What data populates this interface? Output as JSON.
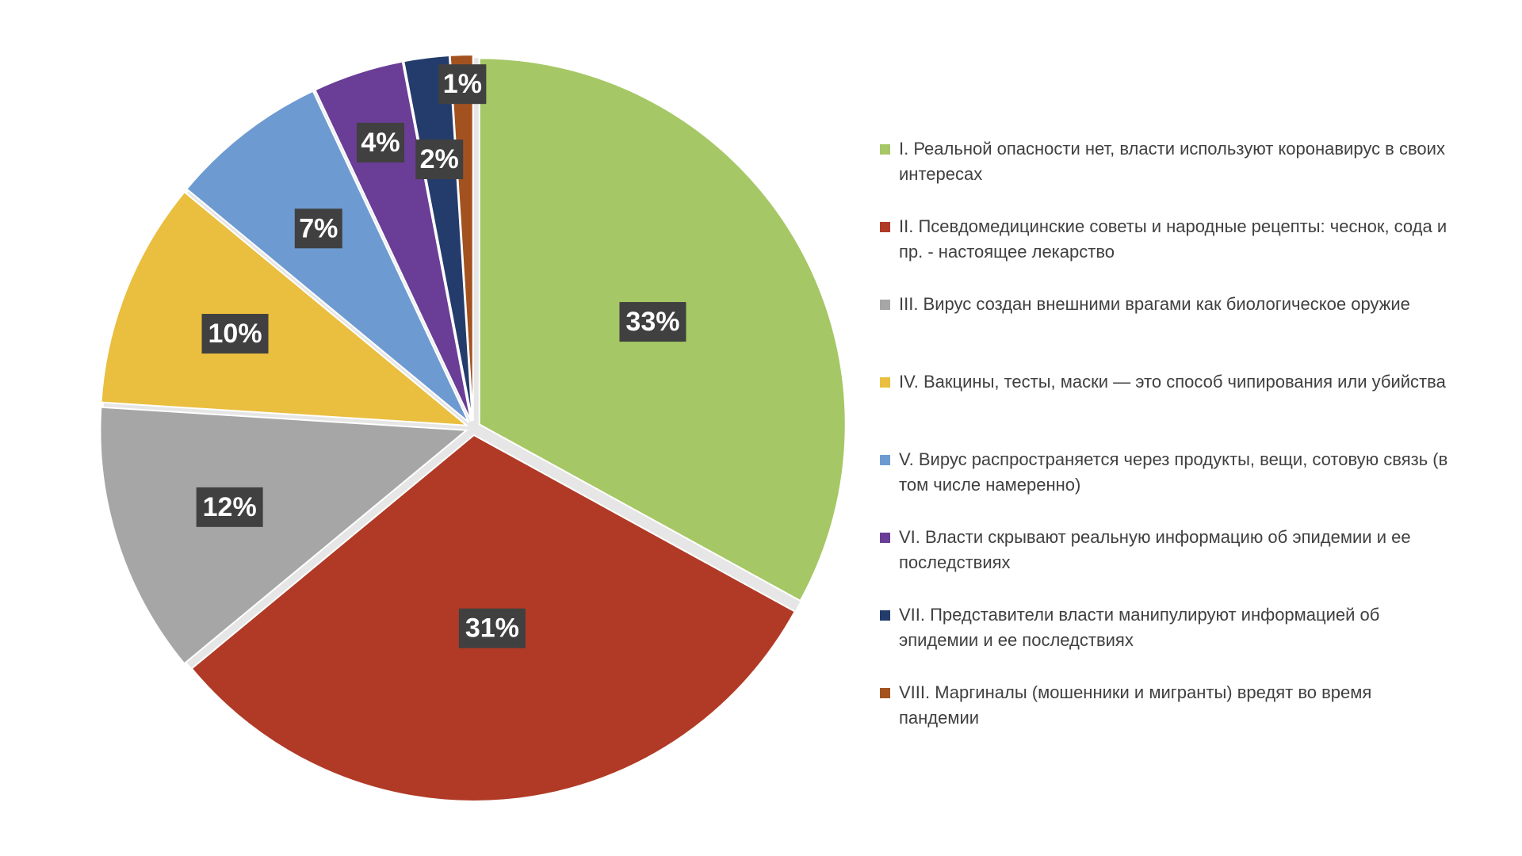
{
  "chart_data": {
    "type": "pie",
    "title": "",
    "slices": [
      {
        "label": "I. Реальной опасности нет, власти используют коронавирус в своих интересах",
        "value": 33,
        "display": "33%",
        "color": "#a5c765"
      },
      {
        "label": "II. Псевдомедицинские советы и народные рецепты: чеснок, сода и пр. - настоящее лекарство",
        "value": 31,
        "display": "31%",
        "color": "#b03a26"
      },
      {
        "label": "III. Вирус создан внешними врагами как биологическое оружие",
        "value": 12,
        "display": "12%",
        "color": "#a6a6a6"
      },
      {
        "label": "IV. Вакцины, тесты, маски — это способ чипирования или убийства",
        "value": 10,
        "display": "10%",
        "color": "#eabe3e"
      },
      {
        "label": "V. Вирус распространяется через продукты, вещи, сотовую связь (в том числе намеренно)",
        "value": 7,
        "display": "7%",
        "color": "#6d9bd1"
      },
      {
        "label": "VI. Власти скрывают реальную информацию об эпидемии и ее последствиях",
        "value": 4,
        "display": "4%",
        "color": "#6a3d96"
      },
      {
        "label": "VII. Представители власти манипулируют информацией об эпидемии и ее последствиях",
        "value": 2,
        "display": "2%",
        "color": "#243c6b"
      },
      {
        "label": "VIII. Маргиналы (мошенники и мигранты) вредят во время пандемии",
        "value": 1,
        "display": "1%",
        "color": "#a3521f"
      }
    ],
    "legend_position": "right",
    "exploded": true
  }
}
